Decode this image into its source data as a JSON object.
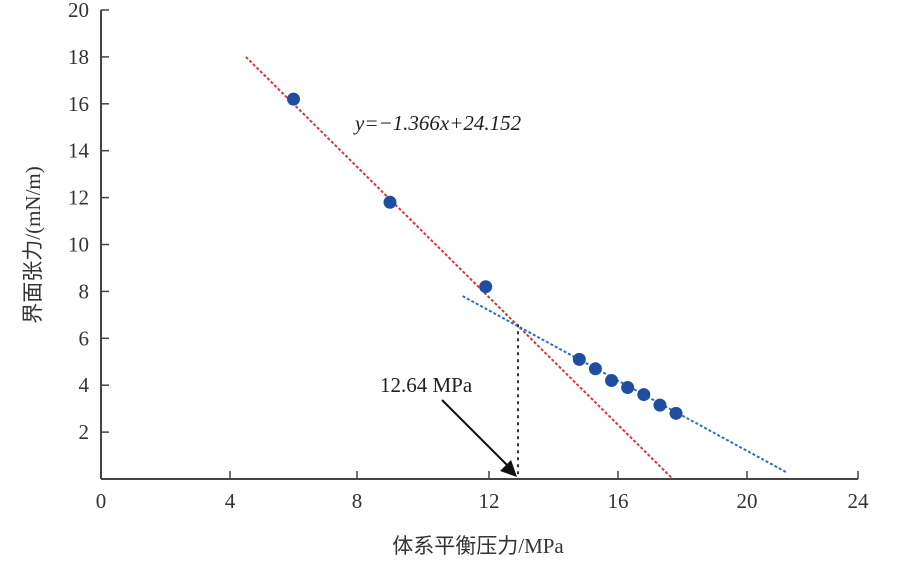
{
  "chart_data": {
    "type": "scatter",
    "title": "",
    "xlabel": "体系平衡压力/MPa",
    "ylabel": "界面张力/(mN/m)",
    "xlim": [
      0,
      24
    ],
    "ylim": [
      0,
      20
    ],
    "xticks": [
      "0",
      "4",
      "8",
      "12",
      "16",
      "20",
      "24"
    ],
    "yticks": [
      "2",
      "4",
      "6",
      "8",
      "10",
      "12",
      "14",
      "16",
      "18",
      "20"
    ],
    "grid": false,
    "series": [
      {
        "color": "#1f4ea0",
        "points": [
          {
            "x": 6.0,
            "y": 16.2
          },
          {
            "x": 9.0,
            "y": 11.8
          },
          {
            "x": 11.9,
            "y": 8.2
          },
          {
            "x": 14.8,
            "y": 5.1
          },
          {
            "x": 15.3,
            "y": 4.7
          },
          {
            "x": 15.8,
            "y": 4.2
          },
          {
            "x": 16.3,
            "y": 3.9
          },
          {
            "x": 16.8,
            "y": 3.6
          },
          {
            "x": 17.3,
            "y": 3.15
          },
          {
            "x": 17.8,
            "y": 2.8
          }
        ]
      }
    ],
    "fit_lines": [
      {
        "color": "#d9383a",
        "style": "dotted",
        "x": [
          4.5,
          17.7
        ],
        "y": [
          18.0,
          0.0
        ],
        "equation": "y=−1.366x+24.152"
      },
      {
        "color": "#2d6fc0",
        "style": "dotted",
        "x": [
          11.2,
          21.4
        ],
        "y": [
          7.8,
          0.3
        ]
      }
    ],
    "annotation": {
      "text": "12.64 MPa",
      "marker_x": 12.9,
      "marker_y": 6.6
    }
  }
}
